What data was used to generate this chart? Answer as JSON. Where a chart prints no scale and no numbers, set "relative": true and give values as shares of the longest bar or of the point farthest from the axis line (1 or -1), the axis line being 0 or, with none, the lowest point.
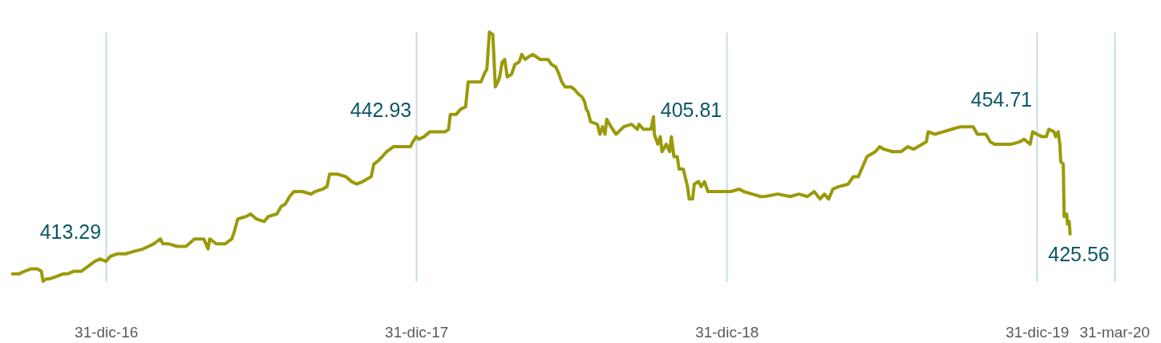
{
  "chart_data": {
    "type": "line",
    "relative": true,
    "grid": "x",
    "xlim": [
      "2016-09-03",
      "2020-04-04"
    ],
    "xticks": [
      {
        "value": "2016-12-31",
        "label": "31-dic-16"
      },
      {
        "value": "2017-12-31",
        "label": "31-dic-17"
      },
      {
        "value": "2018-12-31",
        "label": "31-dic-18"
      },
      {
        "value": "2019-12-31",
        "label": "31-dic-19"
      },
      {
        "value": "2020-03-31",
        "label": "31-mar-20"
      }
    ],
    "annotations": [
      "413.29",
      "442.93",
      "405.81",
      "454.71",
      "425.56"
    ],
    "series": [
      {
        "color": "#9a9a0a",
        "x": [
          "2016-09-12",
          "2016-09-20",
          "2016-09-26",
          "2016-10-04",
          "2016-10-11",
          "2016-10-16",
          "2016-10-18",
          "2016-10-22",
          "2016-10-26",
          "2016-11-03",
          "2016-11-11",
          "2016-11-16",
          "2016-11-23",
          "2016-12-02",
          "2016-12-06",
          "2016-12-10",
          "2016-12-14",
          "2016-12-18",
          "2016-12-24",
          "2016-12-31",
          "2017-01-05",
          "2017-01-13",
          "2017-01-23",
          "2017-02-02",
          "2017-02-13",
          "2017-02-25",
          "2017-03-01",
          "2017-03-05",
          "2017-03-08",
          "2017-03-15",
          "2017-03-25",
          "2017-04-04",
          "2017-04-14",
          "2017-04-25",
          "2017-04-30",
          "2017-05-02",
          "2017-05-10",
          "2017-05-20",
          "2017-05-28",
          "2017-05-31",
          "2017-06-04",
          "2017-06-14",
          "2017-06-19",
          "2017-06-26",
          "2017-07-05",
          "2017-07-10",
          "2017-07-20",
          "2017-07-25",
          "2017-07-30",
          "2017-08-04",
          "2017-08-09",
          "2017-08-19",
          "2017-08-29",
          "2017-09-03",
          "2017-09-12",
          "2017-09-17",
          "2017-09-20",
          "2017-09-29",
          "2017-10-09",
          "2017-10-16",
          "2017-10-22",
          "2017-10-29",
          "2017-11-03",
          "2017-11-08",
          "2017-11-11",
          "2017-11-15",
          "2017-11-21",
          "2017-11-26",
          "2017-12-04",
          "2017-12-14",
          "2017-12-24",
          "2017-12-27",
          "2017-12-31",
          "2018-01-03",
          "2018-01-09",
          "2018-01-16",
          "2018-01-27",
          "2018-02-03",
          "2018-02-07",
          "2018-02-09",
          "2018-02-16",
          "2018-02-21",
          "2018-02-27",
          "2018-03-02",
          "2018-03-08",
          "2018-03-17",
          "2018-03-22",
          "2018-03-24",
          "2018-03-27",
          "2018-03-31",
          "2018-04-03",
          "2018-04-06",
          "2018-04-08",
          "2018-04-11",
          "2018-04-14",
          "2018-04-17",
          "2018-04-22",
          "2018-04-26",
          "2018-05-01",
          "2018-05-04",
          "2018-05-08",
          "2018-05-12",
          "2018-05-17",
          "2018-05-26",
          "2018-06-04",
          "2018-06-08",
          "2018-06-13",
          "2018-06-17",
          "2018-06-20",
          "2018-06-24",
          "2018-07-01",
          "2018-07-05",
          "2018-07-10",
          "2018-07-14",
          "2018-07-17",
          "2018-07-19",
          "2018-07-21",
          "2018-07-24",
          "2018-08-01",
          "2018-08-04",
          "2018-08-07",
          "2018-08-10",
          "2018-08-12",
          "2018-08-17",
          "2018-08-23",
          "2018-09-01",
          "2018-09-10",
          "2018-09-17",
          "2018-09-19",
          "2018-09-24",
          "2018-10-03",
          "2018-10-06",
          "2018-10-07",
          "2018-10-11",
          "2018-10-14",
          "2018-10-16",
          "2018-10-21",
          "2018-10-25",
          "2018-10-27",
          "2018-10-30",
          "2018-11-03",
          "2018-11-05",
          "2018-11-10",
          "2018-11-15",
          "2018-11-17",
          "2018-11-21",
          "2018-11-23",
          "2018-11-28",
          "2018-12-01",
          "2018-12-05",
          "2018-12-09",
          "2018-12-18",
          "2018-12-31",
          "2019-01-05",
          "2019-01-15",
          "2019-01-20",
          "2019-01-30",
          "2019-02-09",
          "2019-02-14",
          "2019-03-01",
          "2019-03-16",
          "2019-03-26",
          "2019-04-05",
          "2019-04-13",
          "2019-04-20",
          "2019-04-25",
          "2019-04-30",
          "2019-05-05",
          "2019-05-12",
          "2019-05-23",
          "2019-05-29",
          "2019-06-04",
          "2019-06-09",
          "2019-06-14",
          "2019-06-24",
          "2019-06-29",
          "2019-07-04",
          "2019-07-14",
          "2019-07-24",
          "2019-08-01",
          "2019-08-08",
          "2019-08-13",
          "2019-08-18",
          "2019-08-23",
          "2019-08-25",
          "2019-09-02",
          "2019-09-12",
          "2019-09-22",
          "2019-10-02",
          "2019-10-17",
          "2019-10-22",
          "2019-11-01",
          "2019-11-06",
          "2019-11-11",
          "2019-11-21",
          "2019-12-01",
          "2019-12-11",
          "2019-12-16",
          "2019-12-23",
          "2019-12-26",
          "2019-12-31",
          "2020-01-06",
          "2020-01-11",
          "2020-01-14",
          "2020-01-20",
          "2020-01-22",
          "2020-01-25",
          "2020-01-27",
          "2020-01-28",
          "2020-01-31",
          "2020-02-01",
          "2020-02-04",
          "2020-02-05",
          "2020-02-07",
          "2020-02-08"
        ],
        "values": [
          0.03,
          0.03,
          0.04,
          0.05,
          0.05,
          0.04,
          0,
          0.01,
          0.01,
          0.02,
          0.03,
          0.03,
          0.04,
          0.04,
          0.05,
          0.06,
          0.07,
          0.08,
          0.09,
          0.08,
          0.1,
          0.11,
          0.11,
          0.12,
          0.13,
          0.15,
          0.16,
          0.17,
          0.15,
          0.15,
          0.14,
          0.14,
          0.17,
          0.17,
          0.13,
          0.17,
          0.15,
          0.15,
          0.17,
          0.2,
          0.25,
          0.26,
          0.27,
          0.25,
          0.24,
          0.26,
          0.27,
          0.3,
          0.31,
          0.34,
          0.36,
          0.36,
          0.35,
          0.36,
          0.37,
          0.38,
          0.43,
          0.43,
          0.42,
          0.4,
          0.39,
          0.4,
          0.41,
          0.42,
          0.47,
          0.48,
          0.5,
          0.52,
          0.54,
          0.54,
          0.54,
          0.56,
          0.58,
          0.57,
          0.58,
          0.6,
          0.6,
          0.6,
          0.61,
          0.67,
          0.67,
          0.69,
          0.7,
          0.8,
          0.8,
          0.8,
          0.84,
          0.85,
          1,
          0.99,
          0.78,
          0.8,
          0.82,
          0.88,
          0.89,
          0.82,
          0.83,
          0.87,
          0.88,
          0.91,
          0.89,
          0.9,
          0.91,
          0.89,
          0.89,
          0.87,
          0.86,
          0.83,
          0.8,
          0.78,
          0.78,
          0.77,
          0.75,
          0.74,
          0.72,
          0.69,
          0.68,
          0.64,
          0.63,
          0.59,
          0.62,
          0.59,
          0.65,
          0.62,
          0.59,
          0.62,
          0.63,
          0.61,
          0.63,
          0.61,
          0.61,
          0.66,
          0.59,
          0.55,
          0.58,
          0.52,
          0.55,
          0.52,
          0.58,
          0.5,
          0.5,
          0.45,
          0.45,
          0.38,
          0.33,
          0.33,
          0.39,
          0.4,
          0.38,
          0.4,
          0.36,
          0.36,
          0.36,
          0.36,
          0.37,
          0.36,
          0.35,
          0.34,
          0.34,
          0.35,
          0.34,
          0.35,
          0.34,
          0.36,
          0.33,
          0.35,
          0.33,
          0.37,
          0.38,
          0.39,
          0.42,
          0.42,
          0.46,
          0.5,
          0.52,
          0.54,
          0.53,
          0.52,
          0.52,
          0.54,
          0.53,
          0.54,
          0.55,
          0.56,
          0.6,
          0.59,
          0.6,
          0.61,
          0.62,
          0.62,
          0.59,
          0.59,
          0.56,
          0.55,
          0.55,
          0.55,
          0.56,
          0.57,
          0.55,
          0.6,
          0.59,
          0.58,
          0.58,
          0.61,
          0.6,
          0.58,
          0.6,
          0.55,
          0.48,
          0.47,
          0.26,
          0.27,
          0.23,
          0.24,
          0.19
        ]
      }
    ]
  }
}
